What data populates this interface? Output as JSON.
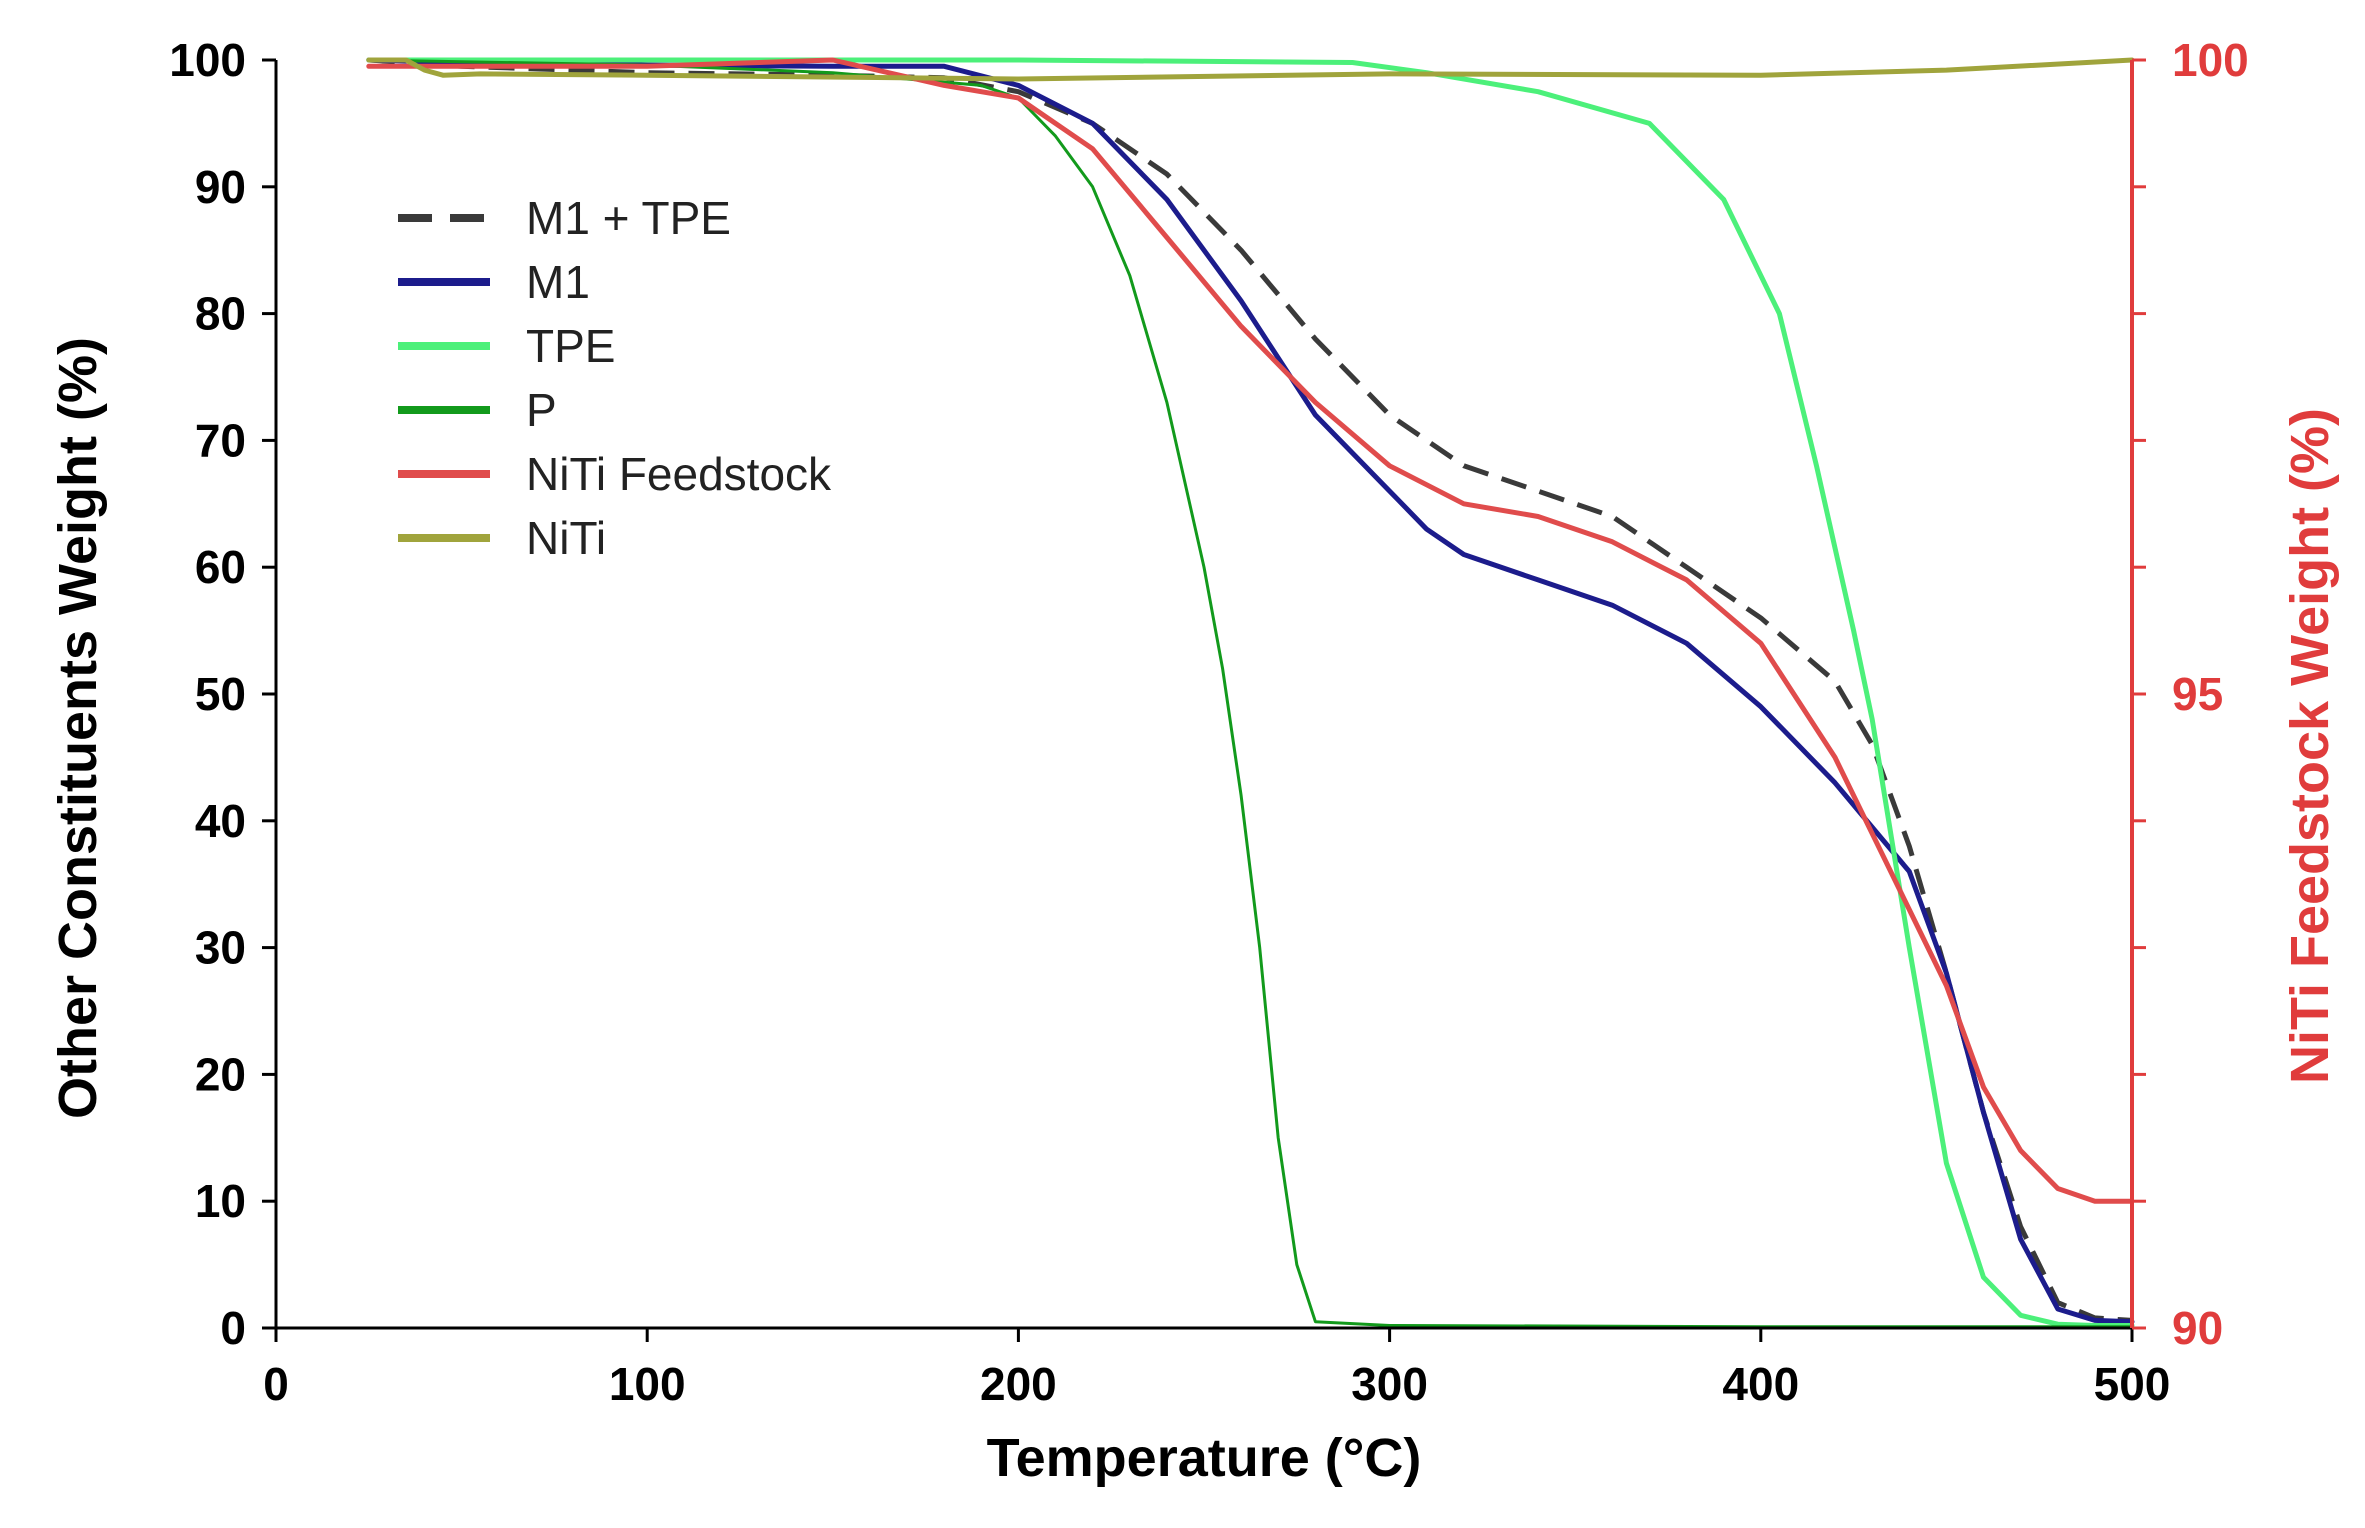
{
  "chart_data": {
    "type": "line",
    "xlabel": "Temperature (°C)",
    "ylabel": "Other Constituents Weight (%)",
    "y2label": "NiTi Feedstock Weight (%)",
    "xlim": [
      0,
      500
    ],
    "ylim": [
      0,
      100
    ],
    "y2lim": [
      90,
      100
    ],
    "x_ticks": [
      "0",
      "100",
      "200",
      "300",
      "400",
      "500"
    ],
    "y_ticks": [
      "0",
      "10",
      "20",
      "30",
      "40",
      "50",
      "60",
      "70",
      "80",
      "90",
      "100"
    ],
    "y2_ticks": [
      "90",
      "95",
      "100"
    ],
    "grid": false,
    "legend_position": "top-left",
    "colors": {
      "axis": "#000000",
      "right_axis": "#e03c3c"
    },
    "series": [
      {
        "name": "M1 + TPE",
        "axis": "left",
        "color": "#3a3a3a",
        "dashed": true,
        "x": [
          25,
          50,
          100,
          150,
          180,
          200,
          220,
          240,
          260,
          280,
          300,
          320,
          340,
          360,
          380,
          400,
          420,
          430,
          440,
          450,
          460,
          470,
          480,
          490,
          500
        ],
        "y": [
          100,
          99.5,
          99,
          98.8,
          98.6,
          97.5,
          95,
          91,
          85,
          78,
          72,
          68,
          66,
          64,
          60,
          56,
          51,
          46,
          38,
          28,
          17,
          8,
          2,
          0.8,
          0.6
        ]
      },
      {
        "name": "M1",
        "axis": "left",
        "color": "#1c1c8c",
        "dashed": false,
        "x": [
          25,
          50,
          100,
          150,
          180,
          200,
          220,
          240,
          260,
          280,
          300,
          310,
          320,
          340,
          360,
          380,
          400,
          420,
          440,
          450,
          460,
          470,
          480,
          490,
          500
        ],
        "y": [
          100,
          99.8,
          99.6,
          99.5,
          99.5,
          98,
          95,
          89,
          81,
          72,
          66,
          63,
          61,
          59,
          57,
          54,
          49,
          43,
          36,
          28,
          17,
          7,
          1.5,
          0.6,
          0.5
        ]
      },
      {
        "name": "TPE",
        "axis": "left",
        "color": "#4cf07a",
        "dashed": false,
        "x": [
          25,
          100,
          200,
          290,
          310,
          340,
          370,
          390,
          405,
          415,
          425,
          430,
          440,
          450,
          460,
          470,
          480,
          490,
          500
        ],
        "y": [
          100,
          100,
          100,
          99.8,
          99,
          97.5,
          95,
          89,
          80,
          68,
          55,
          48,
          30,
          13,
          4,
          1,
          0.3,
          0.2,
          0.2
        ]
      },
      {
        "name": "P",
        "axis": "left",
        "color": "#129a1c",
        "dashed": false,
        "x": [
          25,
          100,
          150,
          190,
          200,
          210,
          220,
          230,
          240,
          250,
          255,
          260,
          265,
          270,
          275,
          280,
          300,
          400,
          500
        ],
        "y": [
          100,
          99.6,
          99,
          98,
          97,
          94,
          90,
          83,
          73,
          60,
          52,
          42,
          30,
          15,
          5,
          0.5,
          0.2,
          0.1,
          0.1
        ]
      },
      {
        "name": "NiTi Feedstock",
        "axis": "right",
        "color": "#e04c4c",
        "dashed": false,
        "x": [
          25,
          50,
          100,
          150,
          180,
          200,
          220,
          240,
          260,
          280,
          300,
          320,
          340,
          360,
          380,
          400,
          420,
          440,
          450,
          460,
          470,
          480,
          490,
          500
        ],
        "y": [
          99.95,
          99.95,
          99.95,
          100,
          99.8,
          99.7,
          99.3,
          98.6,
          97.9,
          97.3,
          96.8,
          96.5,
          96.4,
          96.2,
          95.9,
          95.4,
          94.5,
          93.3,
          92.7,
          91.9,
          91.4,
          91.1,
          91.0,
          91.0
        ]
      },
      {
        "name": "NiTi",
        "axis": "left",
        "color": "#a0a43c",
        "dashed": false,
        "x": [
          25,
          35,
          40,
          45,
          55,
          100,
          200,
          300,
          400,
          450,
          500
        ],
        "y": [
          100,
          100,
          99.2,
          98.8,
          98.9,
          98.8,
          98.5,
          98.9,
          98.8,
          99.2,
          100
        ]
      }
    ]
  }
}
